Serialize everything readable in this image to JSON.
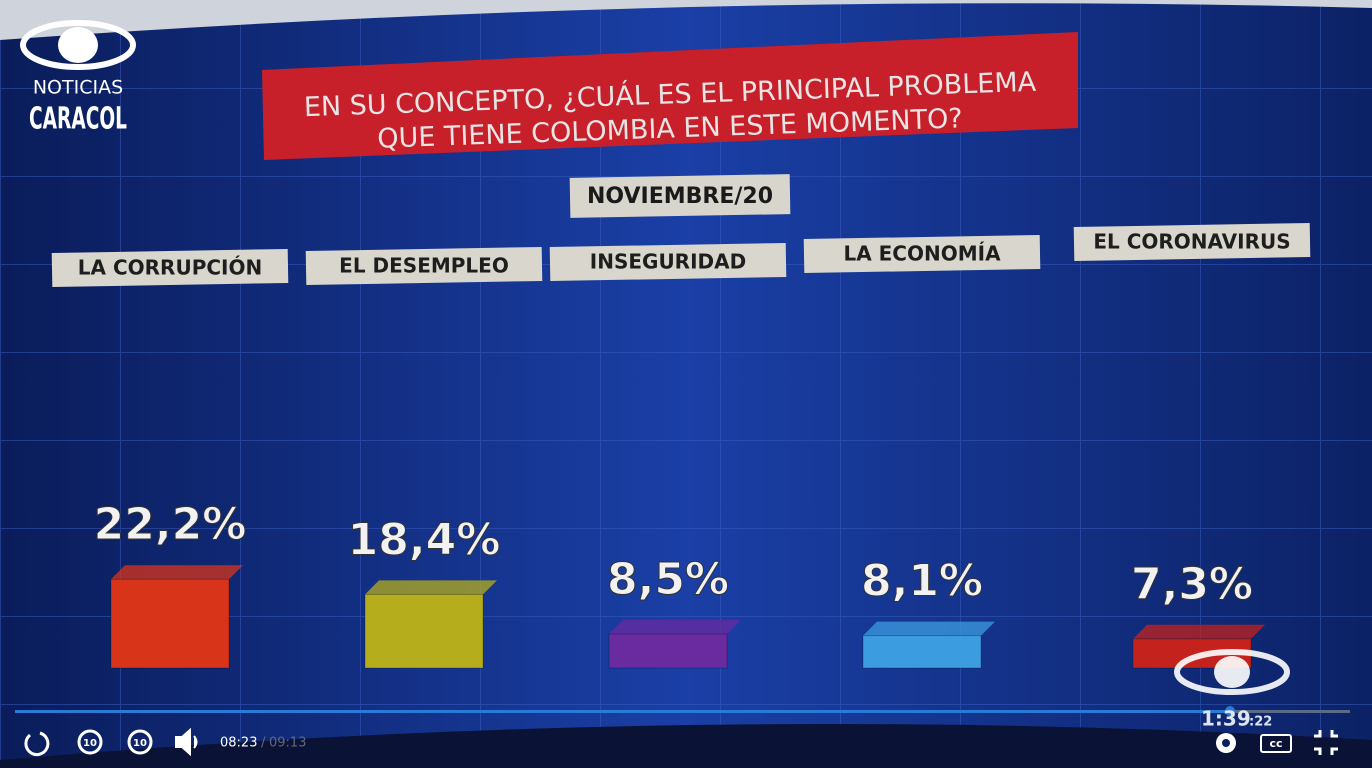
{
  "chart_data": {
    "type": "bar",
    "title": [
      "EN SU CONCEPTO, ¿CUÁL ES EL PRINCIPAL PROBLEMA",
      "QUE TIENE COLOMBIA EN ESTE MOMENTO?"
    ],
    "subtitle": "NOVIEMBRE/20",
    "categories": [
      "LA CORRUPCIÓN",
      "EL DESEMPLEO",
      "INSEGURIDAD",
      "LA ECONOMÍA",
      "EL CORONAVIRUS"
    ],
    "values": [
      22.2,
      18.4,
      8.5,
      8.1,
      7.3
    ],
    "value_labels": [
      "22,2%",
      "18,4%",
      "8,5%",
      "8,1%",
      "7,3%"
    ],
    "colors": [
      "#d8341a",
      "#b5ad1c",
      "#6a2aa0",
      "#3c9ce0",
      "#c4221c"
    ]
  },
  "logo": {
    "line1": "NOTICIAS",
    "line2": "CARACOL"
  },
  "player": {
    "current_time": "08:23",
    "separator": "/",
    "duration": "09:13",
    "clock": "1:39",
    "clock_seconds": ":22",
    "cc": "cc"
  }
}
